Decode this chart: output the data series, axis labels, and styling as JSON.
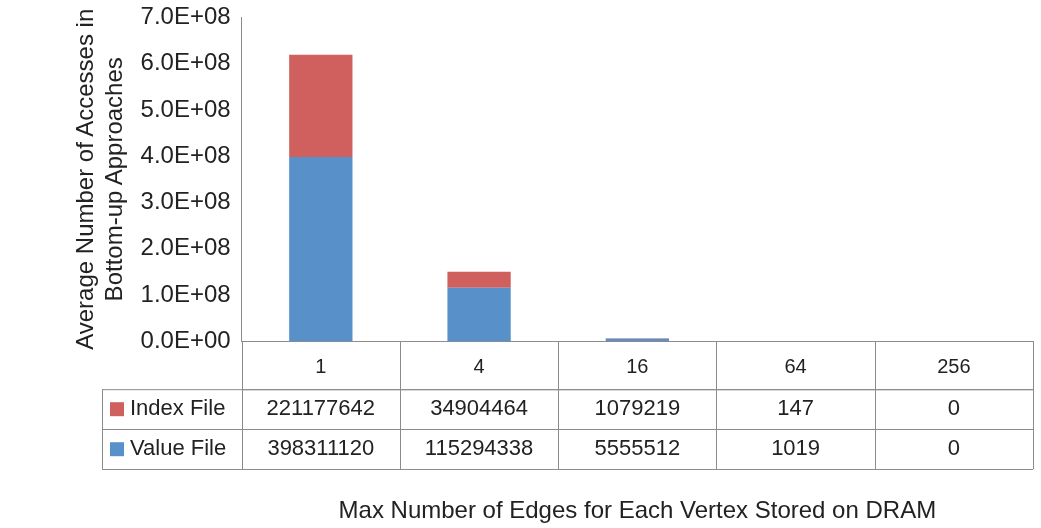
{
  "chart_data": {
    "type": "bar",
    "stacked": true,
    "xlabel": "Max Number of Edges for Each Vertex Stored on DRAM",
    "ylabel": "Average Number of Accesses in Bottom-up Approaches",
    "categories": [
      "1",
      "4",
      "16",
      "64",
      "256"
    ],
    "series": [
      {
        "name": "Value File",
        "color": "#5891c9",
        "values": [
          398311120,
          115294338,
          5555512,
          1019,
          0
        ]
      },
      {
        "name": "Index File",
        "color": "#d0605e",
        "values": [
          221177642,
          34904464,
          1079219,
          147,
          0
        ]
      }
    ],
    "ylim": [
      0,
      700000000
    ],
    "yticks": [
      {
        "value": 0,
        "label": "0.0E+00"
      },
      {
        "value": 100000000,
        "label": "1.0E+08"
      },
      {
        "value": 200000000,
        "label": "2.0E+08"
      },
      {
        "value": 300000000,
        "label": "3.0E+08"
      },
      {
        "value": 400000000,
        "label": "4.0E+08"
      },
      {
        "value": 500000000,
        "label": "5.0E+08"
      },
      {
        "value": 600000000,
        "label": "6.0E+08"
      },
      {
        "value": 700000000,
        "label": "7.0E+08"
      }
    ],
    "grid": false,
    "legend": "bottom left",
    "data_labels": true
  }
}
